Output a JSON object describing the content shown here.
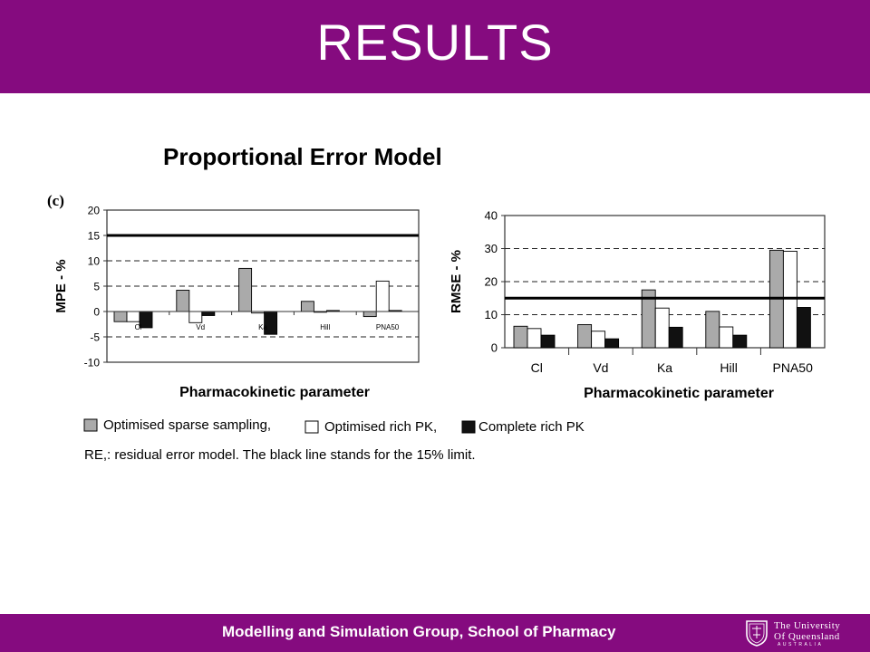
{
  "header": {
    "title": "RESULTS"
  },
  "subtitle": "Proportional Error Model",
  "panel_tag": "(c)",
  "footer": {
    "text": "Modelling and Simulation Group, School of Pharmacy",
    "logo": {
      "line1": "The University",
      "line2": "Of Queensland",
      "line3": "AUSTRALIA"
    }
  },
  "colors": {
    "brand": "#850b7f",
    "sparse": "#aaaaaa",
    "rich": "#ffffff",
    "complete": "#111111"
  },
  "legend": [
    {
      "label": "Optimised sparse sampling,",
      "color": "#aaaaaa"
    },
    {
      "label": "Optimised rich PK,",
      "color": "#ffffff"
    },
    {
      "label": "Complete rich PK",
      "color": "#111111"
    }
  ],
  "caption": "RE,: residual error model. The black line stands for the 15% limit.",
  "chart_data": [
    {
      "type": "bar",
      "ylabel": "MPE - %",
      "xlabel": "Pharmacokinetic parameter",
      "categories": [
        "Cl",
        "Vd",
        "Ka",
        "Hill",
        "PNA50"
      ],
      "category_labels_position": "inside-axis",
      "series": [
        {
          "name": "Optimised sparse sampling",
          "values": [
            -2,
            4.2,
            8.5,
            2,
            -1
          ]
        },
        {
          "name": "Optimised rich PK",
          "values": [
            -2,
            -2.2,
            -0.3,
            0,
            6
          ]
        },
        {
          "name": "Complete rich PK",
          "values": [
            -3.2,
            -0.8,
            -4.5,
            0.2,
            0.2
          ]
        }
      ],
      "ylim": [
        -10,
        20
      ],
      "yticks": [
        "20",
        "15",
        "10",
        "5",
        "0",
        "-5",
        "-10"
      ],
      "reference_line": 15,
      "dashed_lines": [
        10,
        5,
        -5
      ],
      "grid": false
    },
    {
      "type": "bar",
      "ylabel": "RMSE - %",
      "xlabel": "Pharmacokinetic parameter",
      "categories": [
        "Cl",
        "Vd",
        "Ka",
        "Hill",
        "PNA50"
      ],
      "category_labels_position": "below-axis",
      "series": [
        {
          "name": "Optimised sparse sampling",
          "values": [
            6.5,
            7,
            17.5,
            11,
            29.5
          ]
        },
        {
          "name": "Optimised rich PK",
          "values": [
            5.8,
            5,
            12,
            6.3,
            29.2
          ]
        },
        {
          "name": "Complete rich PK",
          "values": [
            3.8,
            2.7,
            6.2,
            3.8,
            12.2
          ]
        }
      ],
      "ylim": [
        0,
        40
      ],
      "yticks": [
        "40",
        "30",
        "20",
        "10",
        "0"
      ],
      "reference_line": 15,
      "dashed_lines": [
        30,
        20,
        10
      ],
      "grid": false
    }
  ]
}
